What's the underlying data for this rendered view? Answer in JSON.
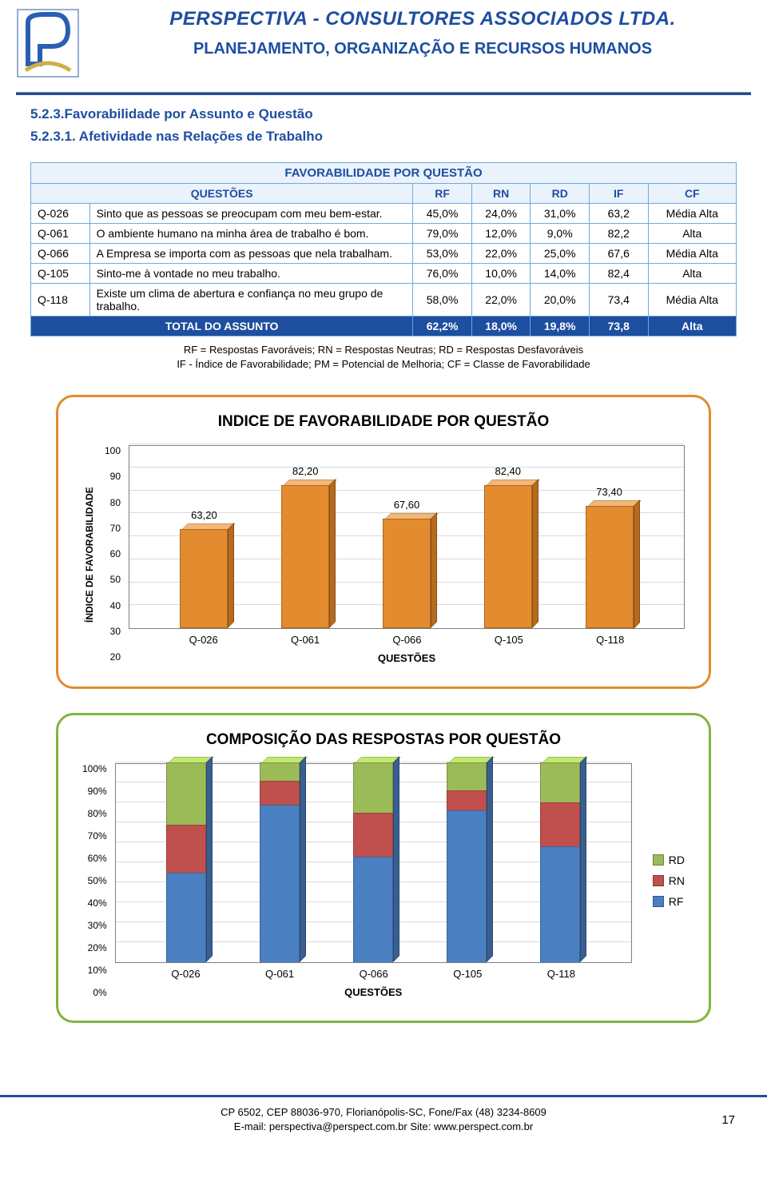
{
  "header": {
    "company": "PERSPECTIVA - CONSULTORES ASSOCIADOS LTDA.",
    "subtitle": "PLANEJAMENTO, ORGANIZAÇÃO E RECURSOS HUMANOS"
  },
  "sections": {
    "heading": "5.2.3.Favorabilidade por Assunto e Questão",
    "subheading": "5.2.3.1. Afetividade nas Relações de Trabalho"
  },
  "table": {
    "title": "FAVORABILIDADE POR QUESTÃO",
    "headers": [
      "QUESTÕES",
      "RF",
      "RN",
      "RD",
      "IF",
      "CF"
    ],
    "rows": [
      {
        "q": "Q-026",
        "desc": "Sinto que as pessoas se preocupam com meu bem-estar.",
        "rf": "45,0%",
        "rn": "24,0%",
        "rd": "31,0%",
        "if": "63,2",
        "cf": "Média Alta"
      },
      {
        "q": "Q-061",
        "desc": "O ambiente humano na minha área de trabalho é bom.",
        "rf": "79,0%",
        "rn": "12,0%",
        "rd": "9,0%",
        "if": "82,2",
        "cf": "Alta"
      },
      {
        "q": "Q-066",
        "desc": "A Empresa se importa com as pessoas que nela trabalham.",
        "rf": "53,0%",
        "rn": "22,0%",
        "rd": "25,0%",
        "if": "67,6",
        "cf": "Média Alta"
      },
      {
        "q": "Q-105",
        "desc": "Sinto-me à vontade no meu trabalho.",
        "rf": "76,0%",
        "rn": "10,0%",
        "rd": "14,0%",
        "if": "82,4",
        "cf": "Alta"
      },
      {
        "q": "Q-118",
        "desc": "Existe um clima de abertura e confiança no meu grupo de trabalho.",
        "rf": "58,0%",
        "rn": "22,0%",
        "rd": "20,0%",
        "if": "73,4",
        "cf": "Média Alta"
      }
    ],
    "total": {
      "label": "TOTAL DO ASSUNTO",
      "rf": "62,2%",
      "rn": "18,0%",
      "rd": "19,8%",
      "if": "73,8",
      "cf": "Alta"
    },
    "note1": "RF = Respostas Favoráveis; RN = Respostas Neutras; RD = Respostas Desfavoráveis",
    "note2": "IF - Índice de Favorabilidade; PM = Potencial de Melhoria; CF = Classe de Favorabilidade"
  },
  "chart1": {
    "title": "INDICE DE FAVORABILIDADE POR QUESTÃO",
    "type": "bar",
    "ylabel": "ÍNDICE DE FAVORABILIDADE",
    "xlabel": "QUESTÕES",
    "ylim": [
      20,
      100
    ],
    "ytick_step": 10,
    "categories": [
      "Q-026",
      "Q-061",
      "Q-066",
      "Q-105",
      "Q-118"
    ],
    "values": [
      63.2,
      82.2,
      67.6,
      82.4,
      73.4
    ],
    "value_labels": [
      "63,20",
      "82,20",
      "67,60",
      "82,40",
      "73,40"
    ],
    "bar_color_front": "#e38b2f",
    "bar_color_top": "#f3b878",
    "bar_color_side": "#b56a1f",
    "grid_color": "#d9d9d9",
    "border_color": "#7f7f7f"
  },
  "chart2": {
    "title": "COMPOSIÇÃO DAS RESPOSTAS POR QUESTÃO",
    "type": "stacked-bar",
    "xlabel": "QUESTÕES",
    "ylim": [
      0,
      100
    ],
    "ytick_step": 10,
    "categories": [
      "Q-026",
      "Q-061",
      "Q-066",
      "Q-105",
      "Q-118"
    ],
    "series": {
      "RF": {
        "color": "#4a7fc1",
        "values": [
          45,
          79,
          53,
          76,
          58
        ]
      },
      "RN": {
        "color": "#c0504d",
        "values": [
          24,
          12,
          22,
          10,
          22
        ]
      },
      "RD": {
        "color": "#9bbb59",
        "values": [
          31,
          9,
          25,
          14,
          20
        ]
      }
    },
    "legend_order": [
      "RD",
      "RN",
      "RF"
    ],
    "grid_color": "#d9d9d9"
  },
  "footer": {
    "line1": "CP 6502, CEP 88036-970, Florianópolis-SC, Fone/Fax (48) 3234-8609",
    "line2": "E-mail: perspectiva@perspect.com.br    Site: www.perspect.com.br",
    "page": "17"
  }
}
